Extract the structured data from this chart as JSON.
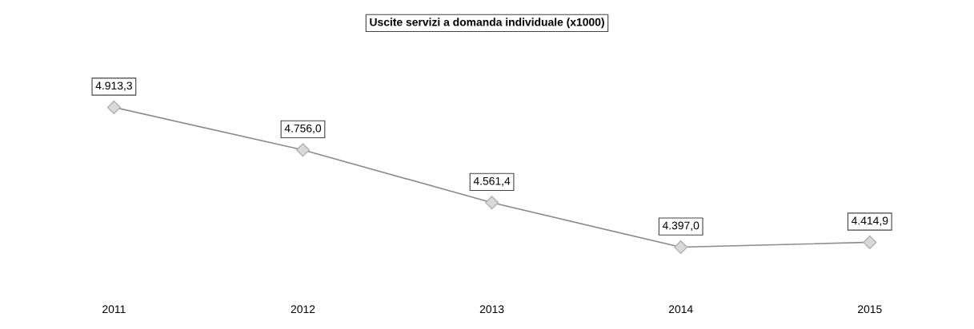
{
  "chart_data": {
    "type": "line",
    "title": "Uscite servizi a domanda individuale (x1000)",
    "categories": [
      "2011",
      "2012",
      "2013",
      "2014",
      "2015"
    ],
    "series": [
      {
        "color": "#8c8c8c",
        "values": [
          4913.3,
          4756.0,
          4561.4,
          4397.0,
          4414.9
        ],
        "value_labels": [
          "4.913,3",
          "4.756,0",
          "4.561,4",
          "4.397,0",
          "4.414,9"
        ]
      }
    ],
    "marker": "diamond",
    "line_style": "solid",
    "tick_labels": "x",
    "grid": false,
    "legend": false
  }
}
